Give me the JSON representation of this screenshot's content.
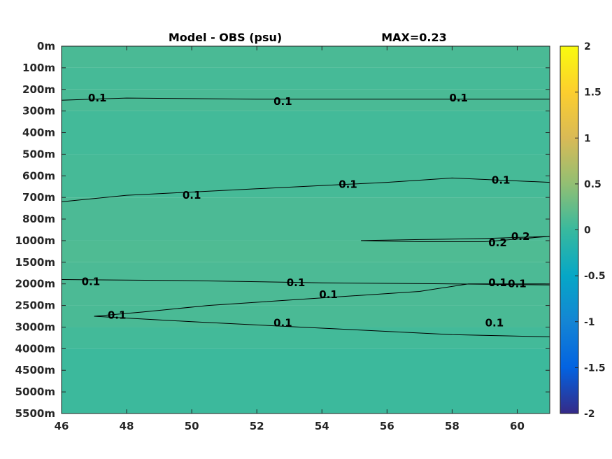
{
  "chart_data": {
    "type": "heatmap",
    "title": "Model - OBS (psu)",
    "subtitle": "MAX=0.23",
    "x_range": [
      46,
      61
    ],
    "x_ticks": [
      "46",
      "48",
      "50",
      "52",
      "54",
      "56",
      "58",
      "60"
    ],
    "x_tick_values": [
      46,
      48,
      50,
      52,
      54,
      56,
      58,
      60
    ],
    "y_tick_labels": [
      "0m",
      "100m",
      "200m",
      "300m",
      "400m",
      "500m",
      "600m",
      "700m",
      "800m",
      "1000m",
      "1500m",
      "2000m",
      "2500m",
      "3000m",
      "4000m",
      "4500m",
      "5000m",
      "5500m"
    ],
    "colorbar": {
      "range": [
        -2,
        2
      ],
      "ticks": [
        "2",
        "1.5",
        "1",
        "0.5",
        "0",
        "-0.5",
        "-1",
        "-1.5",
        "-2"
      ],
      "tick_values": [
        2,
        1.5,
        1,
        0.5,
        0,
        -0.5,
        -1,
        -1.5,
        -2
      ],
      "colormap": "parula",
      "stops": [
        "#352a87",
        "#0363e1",
        "#1485d4",
        "#06a7c6",
        "#38b99e",
        "#92bf73",
        "#d9ba56",
        "#fcce2e",
        "#f9fb0e"
      ]
    },
    "depth_bands": [
      {
        "from_level": 0,
        "to_level": 1,
        "value": 0.1
      },
      {
        "from_level": 1,
        "to_level": 2,
        "value": 0.08
      },
      {
        "from_level": 2,
        "to_level": 3,
        "value": 0.1
      },
      {
        "from_level": 3,
        "to_level": 5,
        "value": 0.06
      },
      {
        "from_level": 5,
        "to_level": 7,
        "value": 0.08
      },
      {
        "from_level": 7,
        "to_level": 9,
        "value": 0.11
      },
      {
        "from_level": 9,
        "to_level": 10,
        "value": 0.13
      },
      {
        "from_level": 10,
        "to_level": 12,
        "value": 0.11
      },
      {
        "from_level": 12,
        "to_level": 13,
        "value": 0.1
      },
      {
        "from_level": 13,
        "to_level": 14,
        "value": 0.06
      },
      {
        "from_level": 14,
        "to_level": 17,
        "value": 0.02
      }
    ],
    "contours": [
      {
        "level": 0.1,
        "points": [
          [
            46,
            2.5
          ],
          [
            48,
            2.4
          ],
          [
            52,
            2.45
          ],
          [
            56,
            2.45
          ],
          [
            61,
            2.45
          ]
        ]
      },
      {
        "level": 0.1,
        "points": [
          [
            46,
            7.2
          ],
          [
            48,
            6.9
          ],
          [
            52,
            6.6
          ],
          [
            56,
            6.3
          ],
          [
            58,
            6.1
          ],
          [
            61,
            6.3
          ]
        ]
      },
      {
        "level": 0.1,
        "points": [
          [
            46,
            10.8
          ],
          [
            50,
            10.85
          ],
          [
            54,
            10.95
          ],
          [
            58,
            11.0
          ],
          [
            61,
            11.05
          ]
        ]
      },
      {
        "level": 0.1,
        "points": [
          [
            47,
            12.5
          ],
          [
            48.5,
            12.3
          ],
          [
            50.5,
            12.0
          ],
          [
            54,
            11.65
          ],
          [
            57,
            11.35
          ],
          [
            58.5,
            11.0
          ],
          [
            61,
            11.0
          ]
        ]
      },
      {
        "level": 0.1,
        "points": [
          [
            47,
            12.5
          ],
          [
            50,
            12.75
          ],
          [
            54,
            13.05
          ],
          [
            58,
            13.35
          ],
          [
            61,
            13.45
          ]
        ]
      },
      {
        "level": 0.2,
        "points": [
          [
            55.2,
            9.0
          ],
          [
            57,
            8.95
          ],
          [
            59,
            8.9
          ],
          [
            61,
            8.8
          ],
          [
            59,
            9.05
          ],
          [
            57,
            9.05
          ],
          [
            55.2,
            9.0
          ]
        ]
      }
    ],
    "contour_labels": [
      {
        "text": "0.1",
        "x": 47.1,
        "y": 2.4
      },
      {
        "text": "0.1",
        "x": 52.8,
        "y": 2.55
      },
      {
        "text": "0.1",
        "x": 58.2,
        "y": 2.4
      },
      {
        "text": "0.1",
        "x": 50.0,
        "y": 6.9
      },
      {
        "text": "0.1",
        "x": 54.8,
        "y": 6.4
      },
      {
        "text": "0.1",
        "x": 59.5,
        "y": 6.2
      },
      {
        "text": "0.2",
        "x": 60.1,
        "y": 8.8
      },
      {
        "text": "0.2",
        "x": 59.4,
        "y": 9.1
      },
      {
        "text": "0.1",
        "x": 46.9,
        "y": 10.9
      },
      {
        "text": "0.1",
        "x": 53.2,
        "y": 10.95
      },
      {
        "text": "0.1",
        "x": 59.4,
        "y": 10.95
      },
      {
        "text": "0.1",
        "x": 60.0,
        "y": 11.0
      },
      {
        "text": "0.1",
        "x": 54.2,
        "y": 11.5
      },
      {
        "text": "0.1",
        "x": 47.7,
        "y": 12.45
      },
      {
        "text": "0.1",
        "x": 52.8,
        "y": 12.8
      },
      {
        "text": "0.1",
        "x": 59.3,
        "y": 12.8
      }
    ]
  }
}
